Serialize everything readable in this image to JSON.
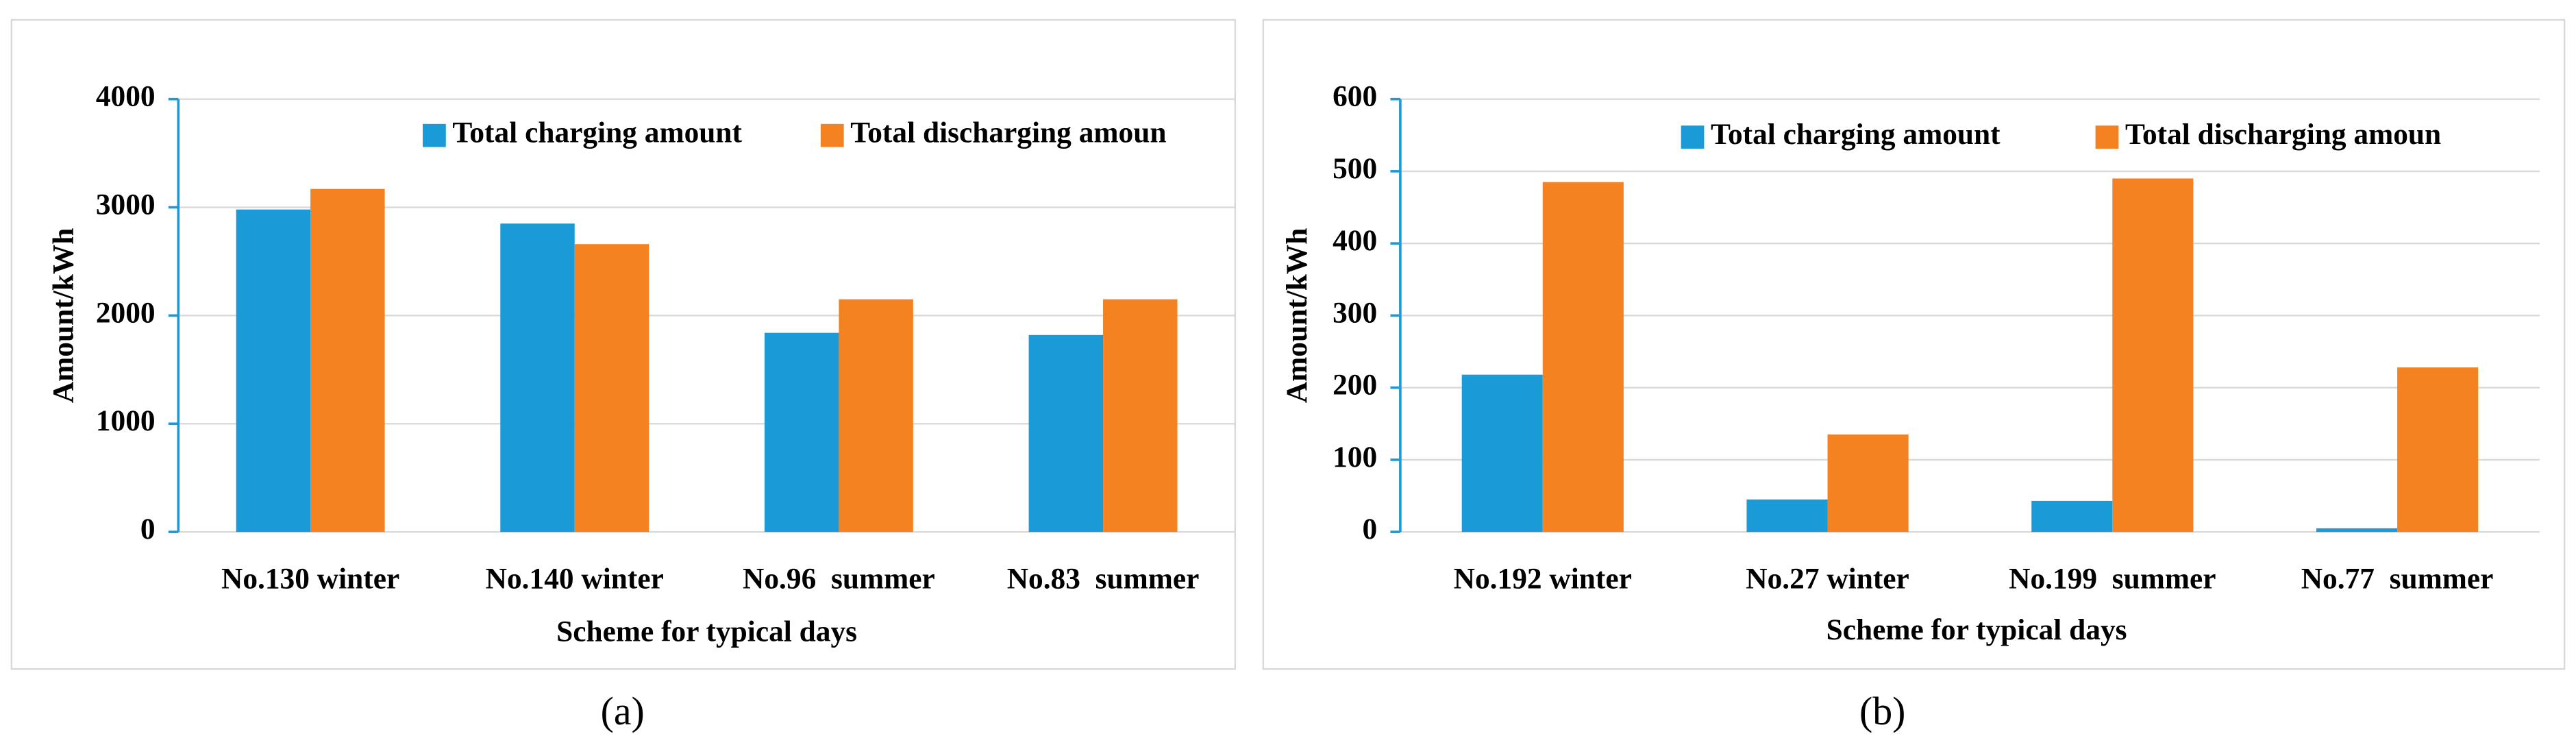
{
  "chart_data": [
    {
      "type": "bar",
      "caption": "(a)",
      "x_label": "Scheme for typical days",
      "y_label": "Amount/kWh",
      "categories": [
        "No.130 winter",
        "No.140 winter",
        "No.96  summer",
        "No.83  summer"
      ],
      "series": [
        {
          "name": "Total charging amount",
          "color": "#1a9bd7",
          "values": [
            2980,
            2850,
            1840,
            1820
          ]
        },
        {
          "name": "Total discharging amoun",
          "color": "#f58220",
          "values": [
            3170,
            2660,
            2150,
            2150
          ]
        }
      ],
      "ylim": [
        0,
        4000
      ],
      "yticks": [
        0,
        1000,
        2000,
        3000,
        4000
      ],
      "grid": true
    },
    {
      "type": "bar",
      "caption": "(b)",
      "x_label": "Scheme for typical days",
      "y_label": "Amount/kWh",
      "categories": [
        "No.192 winter",
        "No.27 winter",
        "No.199  summer",
        "No.77  summer"
      ],
      "series": [
        {
          "name": "Total charging amount",
          "color": "#1a9bd7",
          "values": [
            218,
            45,
            43,
            5
          ]
        },
        {
          "name": "Total discharging amoun",
          "color": "#f58220",
          "values": [
            485,
            135,
            490,
            228
          ]
        }
      ],
      "ylim": [
        0,
        600
      ],
      "yticks": [
        0,
        100,
        200,
        300,
        400,
        500,
        600
      ],
      "grid": true
    }
  ]
}
